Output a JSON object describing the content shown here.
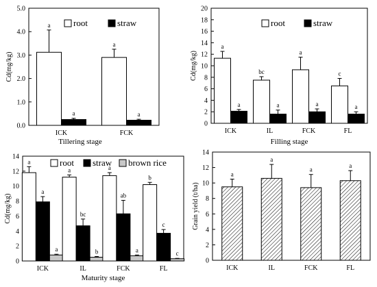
{
  "chart_data": [
    {
      "type": "bar",
      "ylabel": "Cd(mg/kg)",
      "xlabel": "Tillering stage",
      "ylim": [
        0,
        5
      ],
      "yticks": [
        "0.0",
        "1.0",
        "2.0",
        "3.0",
        "4.0",
        "5.0"
      ],
      "categories": [
        "ICK",
        "FCK"
      ],
      "series": [
        {
          "name": "root",
          "fill": "#ffffff",
          "values": [
            3.12,
            2.9
          ],
          "errors": [
            0.95,
            0.35
          ],
          "labels": [
            "a",
            "a"
          ]
        },
        {
          "name": "straw",
          "fill": "#000000",
          "values": [
            0.25,
            0.22
          ],
          "errors": [
            0.05,
            0.04
          ],
          "labels": [
            "a",
            "a"
          ]
        }
      ]
    },
    {
      "type": "bar",
      "ylabel": "Cd(mg/kg)",
      "xlabel": "Filling stage",
      "ylim": [
        0,
        20
      ],
      "yticks": [
        "0",
        "2",
        "4",
        "6",
        "8",
        "10",
        "12",
        "14",
        "16",
        "18",
        "20"
      ],
      "categories": [
        "ICK",
        "IL",
        "FCK",
        "FL"
      ],
      "series": [
        {
          "name": "root",
          "fill": "#ffffff",
          "values": [
            11.3,
            7.5,
            9.3,
            6.5
          ],
          "errors": [
            1.2,
            0.6,
            2.2,
            1.3
          ],
          "labels": [
            "a",
            "bc",
            "a",
            "c"
          ]
        },
        {
          "name": "straw",
          "fill": "#000000",
          "values": [
            2.1,
            1.6,
            2.0,
            1.6
          ],
          "errors": [
            0.3,
            0.7,
            0.5,
            0.4
          ],
          "labels": [
            "a",
            "a",
            "a",
            "a"
          ]
        }
      ]
    },
    {
      "type": "bar",
      "ylabel": "Cd(mg/kg)",
      "xlabel": "Maturity stage",
      "ylim": [
        0,
        14
      ],
      "yticks": [
        "0",
        "2",
        "4",
        "6",
        "8",
        "10",
        "12",
        "14"
      ],
      "categories": [
        "ICK",
        "IL",
        "FCK",
        "FL"
      ],
      "series": [
        {
          "name": "root",
          "fill": "#ffffff",
          "values": [
            11.8,
            11.2,
            11.4,
            10.2
          ],
          "errors": [
            0.8,
            0.3,
            0.4,
            0.3
          ],
          "labels": [
            "a",
            "a",
            "a",
            "b"
          ]
        },
        {
          "name": "straw",
          "fill": "#000000",
          "values": [
            7.9,
            4.7,
            6.3,
            3.7
          ],
          "errors": [
            0.7,
            0.9,
            1.8,
            0.5
          ],
          "labels": [
            "a",
            "bc",
            "ab",
            "c"
          ]
        },
        {
          "name": "brown rice",
          "fill": "#c8c8c8",
          "values": [
            0.8,
            0.5,
            0.7,
            0.3
          ],
          "errors": [
            0.1,
            0.1,
            0.1,
            0.05
          ],
          "labels": [
            "a",
            "b",
            "a",
            "c"
          ]
        }
      ]
    },
    {
      "type": "bar",
      "ylabel": "Grain yield (t/ha)",
      "xlabel": "",
      "ylim": [
        0,
        14
      ],
      "yticks": [
        "0",
        "2",
        "4",
        "6",
        "8",
        "10",
        "12",
        "14"
      ],
      "categories": [
        "ICK",
        "IL",
        "FCK",
        "FL"
      ],
      "series": [
        {
          "name": "",
          "fill": "hatch",
          "values": [
            9.5,
            10.6,
            9.4,
            10.3
          ],
          "errors": [
            1.0,
            1.8,
            1.7,
            1.3
          ],
          "labels": [
            "a",
            "a",
            "a",
            "a"
          ]
        }
      ]
    }
  ]
}
